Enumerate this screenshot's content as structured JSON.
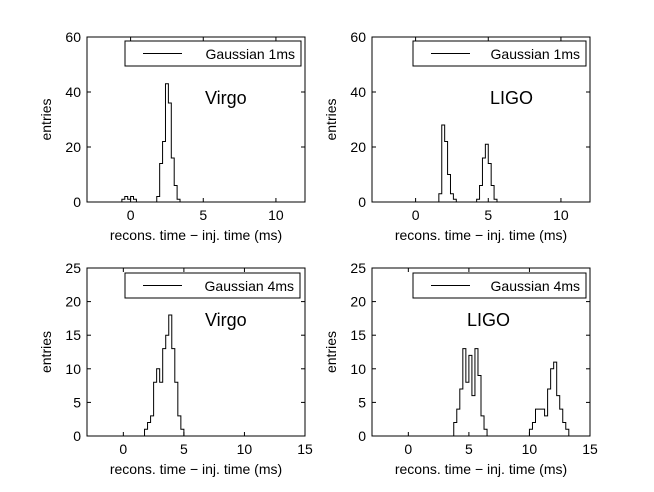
{
  "chart_data": [
    {
      "type": "histogram",
      "legend": "Gaussian 1ms",
      "annotation": "Virgo",
      "xlabel": "recons. time − inj. time (ms)",
      "ylabel": "entries",
      "xlim": [
        -3,
        12
      ],
      "ylim": [
        0,
        60
      ],
      "xticks": [
        0,
        5,
        10
      ],
      "yticks": [
        0,
        20,
        40,
        60
      ],
      "bin_width": 0.2,
      "bins": [
        [
          -0.6,
          1
        ],
        [
          -0.4,
          2
        ],
        [
          -0.2,
          1
        ],
        [
          0.0,
          2
        ],
        [
          0.2,
          1
        ],
        [
          1.8,
          2
        ],
        [
          2.0,
          14
        ],
        [
          2.2,
          22
        ],
        [
          2.4,
          43
        ],
        [
          2.6,
          36
        ],
        [
          2.8,
          16
        ],
        [
          3.0,
          6
        ],
        [
          3.2,
          1
        ]
      ]
    },
    {
      "type": "histogram",
      "legend": "Gaussian 1ms",
      "annotation": "LIGO",
      "xlabel": "recons. time − inj. time (ms)",
      "ylabel": "entries",
      "xlim": [
        -3,
        12
      ],
      "ylim": [
        0,
        60
      ],
      "xticks": [
        0,
        5,
        10
      ],
      "yticks": [
        0,
        20,
        40,
        60
      ],
      "bin_width": 0.2,
      "bins": [
        [
          1.6,
          3
        ],
        [
          1.8,
          28
        ],
        [
          2.0,
          22
        ],
        [
          2.2,
          10
        ],
        [
          2.4,
          3
        ],
        [
          2.6,
          1
        ],
        [
          4.2,
          1
        ],
        [
          4.4,
          6
        ],
        [
          4.6,
          16
        ],
        [
          4.8,
          21
        ],
        [
          5.0,
          14
        ],
        [
          5.2,
          6
        ],
        [
          5.4,
          1
        ]
      ]
    },
    {
      "type": "histogram",
      "legend": "Gaussian 4ms",
      "annotation": "Virgo",
      "xlabel": "recons. time − inj. time (ms)",
      "ylabel": "entries",
      "xlim": [
        -3,
        15
      ],
      "ylim": [
        0,
        25
      ],
      "xticks": [
        0,
        5,
        10,
        15
      ],
      "yticks": [
        0,
        5,
        10,
        15,
        20,
        25
      ],
      "bin_width": 0.25,
      "bins": [
        [
          1.75,
          1
        ],
        [
          2.0,
          2
        ],
        [
          2.25,
          3
        ],
        [
          2.5,
          8
        ],
        [
          2.75,
          10
        ],
        [
          3.0,
          8
        ],
        [
          3.25,
          13
        ],
        [
          3.5,
          15
        ],
        [
          3.75,
          18
        ],
        [
          4.0,
          13
        ],
        [
          4.25,
          8
        ],
        [
          4.5,
          3
        ],
        [
          4.75,
          1
        ]
      ]
    },
    {
      "type": "histogram",
      "legend": "Gaussian 4ms",
      "annotation": "LIGO",
      "xlabel": "recons. time − inj. time (ms)",
      "ylabel": "entries",
      "xlim": [
        -3,
        15
      ],
      "ylim": [
        0,
        25
      ],
      "xticks": [
        0,
        5,
        10,
        15
      ],
      "yticks": [
        0,
        5,
        10,
        15,
        20,
        25
      ],
      "bin_width": 0.25,
      "bins": [
        [
          3.75,
          2
        ],
        [
          4.0,
          4
        ],
        [
          4.25,
          7
        ],
        [
          4.5,
          13
        ],
        [
          4.75,
          8
        ],
        [
          5.0,
          12
        ],
        [
          5.25,
          6
        ],
        [
          5.5,
          13
        ],
        [
          5.75,
          9
        ],
        [
          6.0,
          3
        ],
        [
          6.25,
          1
        ],
        [
          10.0,
          1
        ],
        [
          10.25,
          2
        ],
        [
          10.5,
          4
        ],
        [
          10.75,
          4
        ],
        [
          11.0,
          4
        ],
        [
          11.25,
          3
        ],
        [
          11.5,
          7
        ],
        [
          11.75,
          10
        ],
        [
          12.0,
          11
        ],
        [
          12.25,
          6
        ],
        [
          12.5,
          4
        ],
        [
          12.75,
          2
        ],
        [
          13.0,
          1
        ]
      ]
    }
  ]
}
